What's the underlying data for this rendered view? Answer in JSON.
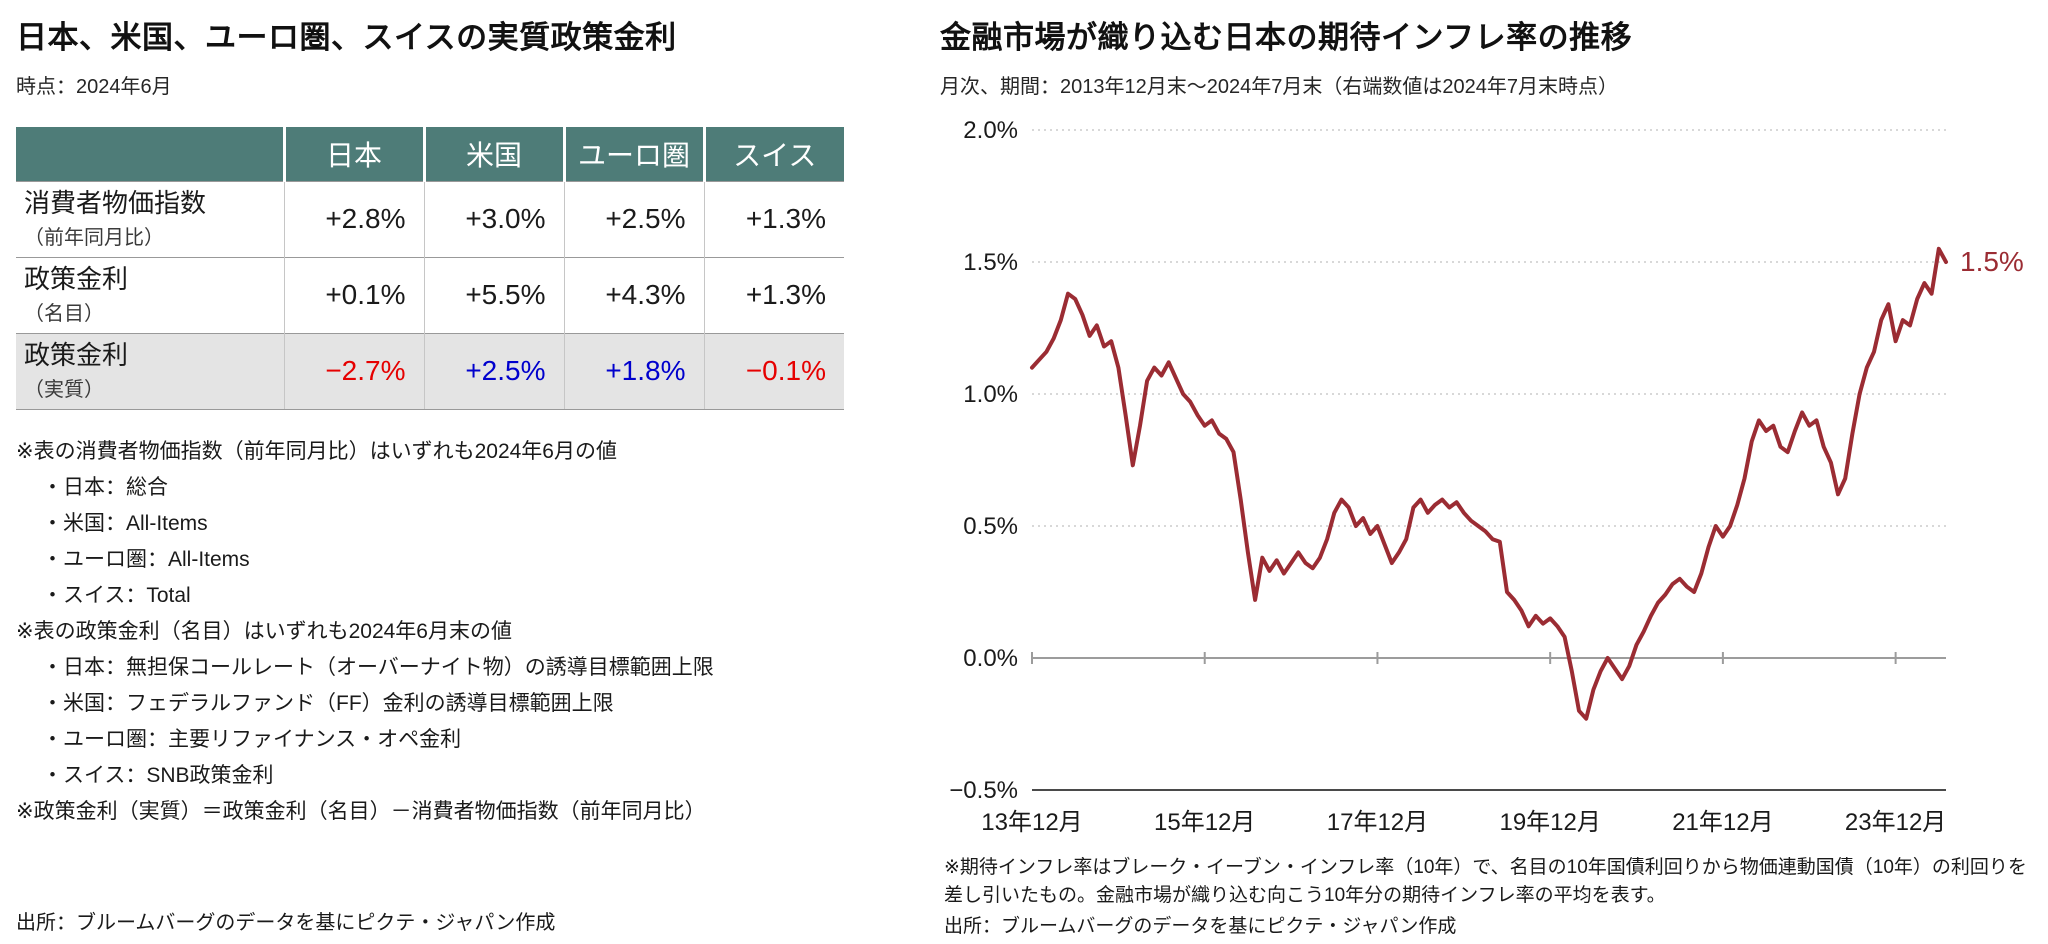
{
  "left_panel": {
    "title": "日本、米国、ユーロ圏、スイスの実質政策金利",
    "subtitle": "時点：2024年6月",
    "table": {
      "header_bg": "#4e7c78",
      "highlight_bg": "#e4e4e4",
      "columns": [
        "日本",
        "米国",
        "ユーロ圏",
        "スイス"
      ],
      "rows": [
        {
          "label": "消費者物価指数",
          "label_sub": "（前年同月比）",
          "values": [
            "+2.8%",
            "+3.0%",
            "+2.5%",
            "+1.3%"
          ],
          "value_colors": [
            "#1a1a1a",
            "#1a1a1a",
            "#1a1a1a",
            "#1a1a1a"
          ]
        },
        {
          "label": "政策金利",
          "label_sub": "（名目）",
          "values": [
            "+0.1%",
            "+5.5%",
            "+4.3%",
            "+1.3%"
          ],
          "value_colors": [
            "#1a1a1a",
            "#1a1a1a",
            "#1a1a1a",
            "#1a1a1a"
          ]
        },
        {
          "label": "政策金利",
          "label_sub": "（実質）",
          "values": [
            "−2.7%",
            "+2.5%",
            "+1.8%",
            "−0.1%"
          ],
          "value_colors": [
            "#e60000",
            "#0000cd",
            "#0000cd",
            "#e60000"
          ]
        }
      ]
    },
    "notes": [
      "※表の消費者物価指数（前年同月比）はいずれも2024年6月の値",
      "・日本：総合",
      "・米国：All-Items",
      "・ユーロ圏：All-Items",
      "・スイス：Total",
      "※表の政策金利（名目）はいずれも2024年6月末の値",
      "・日本：無担保コールレート（オーバーナイト物）の誘導目標範囲上限",
      "・米国：フェデラルファンド（FF）金利の誘導目標範囲上限",
      "・ユーロ圏：主要リファイナンス・オペ金利",
      "・スイス：SNB政策金利",
      "※政策金利（実質）＝政策金利（名目）－消費者物価指数（前年同月比）"
    ],
    "source": "出所：ブルームバーグのデータを基にピクテ・ジャパン作成"
  },
  "right_panel": {
    "title": "金融市場が織り込む日本の期待インフレ率の推移",
    "subtitle": "月次、期間：2013年12月末～2024年7月末（右端数値は2024年7月末時点）",
    "note": "※期待インフレ率はブレーク・イーブン・インフレ率（10年）で、名目の10年国債利回りから物価連動国債（10年）の利回りを差し引いたもの。金融市場が織り込む向こう10年分の期待インフレ率の平均を表す。",
    "source": "出所：ブルームバーグのデータを基にピクテ・ジャパン作成"
  },
  "chart_data": {
    "type": "line",
    "title": "金融市場が織り込む日本の期待インフレ率の推移",
    "series_name": "期待インフレ率（ブレーク・イーブン・インフレ率、10年）",
    "x_start": "2013-12",
    "x_end": "2024-07",
    "frequency": "monthly",
    "ylim": [
      -0.5,
      2.0
    ],
    "yticks": [
      2.0,
      1.5,
      1.0,
      0.5,
      0.0,
      -0.5
    ],
    "ytick_labels": [
      "2.0%",
      "1.5%",
      "1.0%",
      "0.5%",
      "0.0%",
      "−0.5%"
    ],
    "xtick_month_indices": [
      0,
      24,
      48,
      72,
      96,
      120
    ],
    "xtick_labels": [
      "13年12月",
      "15年12月",
      "17年12月",
      "19年12月",
      "21年12月",
      "23年12月"
    ],
    "grid": "dotted-horizontal",
    "line_color": "#9b2c33",
    "end_value_label": "1.5%",
    "values": [
      1.1,
      1.13,
      1.16,
      1.21,
      1.28,
      1.38,
      1.36,
      1.3,
      1.22,
      1.26,
      1.18,
      1.2,
      1.1,
      0.92,
      0.73,
      0.88,
      1.05,
      1.1,
      1.07,
      1.12,
      1.06,
      1.0,
      0.97,
      0.92,
      0.88,
      0.9,
      0.85,
      0.83,
      0.78,
      0.6,
      0.4,
      0.22,
      0.38,
      0.33,
      0.37,
      0.32,
      0.36,
      0.4,
      0.36,
      0.34,
      0.38,
      0.45,
      0.55,
      0.6,
      0.57,
      0.5,
      0.53,
      0.47,
      0.5,
      0.43,
      0.36,
      0.4,
      0.45,
      0.57,
      0.6,
      0.55,
      0.58,
      0.6,
      0.57,
      0.59,
      0.55,
      0.52,
      0.5,
      0.48,
      0.45,
      0.44,
      0.25,
      0.22,
      0.18,
      0.12,
      0.16,
      0.13,
      0.15,
      0.12,
      0.08,
      -0.05,
      -0.2,
      -0.23,
      -0.12,
      -0.05,
      0.0,
      -0.04,
      -0.08,
      -0.03,
      0.05,
      0.1,
      0.16,
      0.21,
      0.24,
      0.28,
      0.3,
      0.27,
      0.25,
      0.32,
      0.42,
      0.5,
      0.46,
      0.5,
      0.58,
      0.68,
      0.82,
      0.9,
      0.86,
      0.88,
      0.8,
      0.78,
      0.86,
      0.93,
      0.88,
      0.9,
      0.8,
      0.74,
      0.62,
      0.68,
      0.85,
      1.0,
      1.1,
      1.16,
      1.28,
      1.34,
      1.2,
      1.28,
      1.26,
      1.36,
      1.42,
      1.38,
      1.55,
      1.5
    ]
  }
}
